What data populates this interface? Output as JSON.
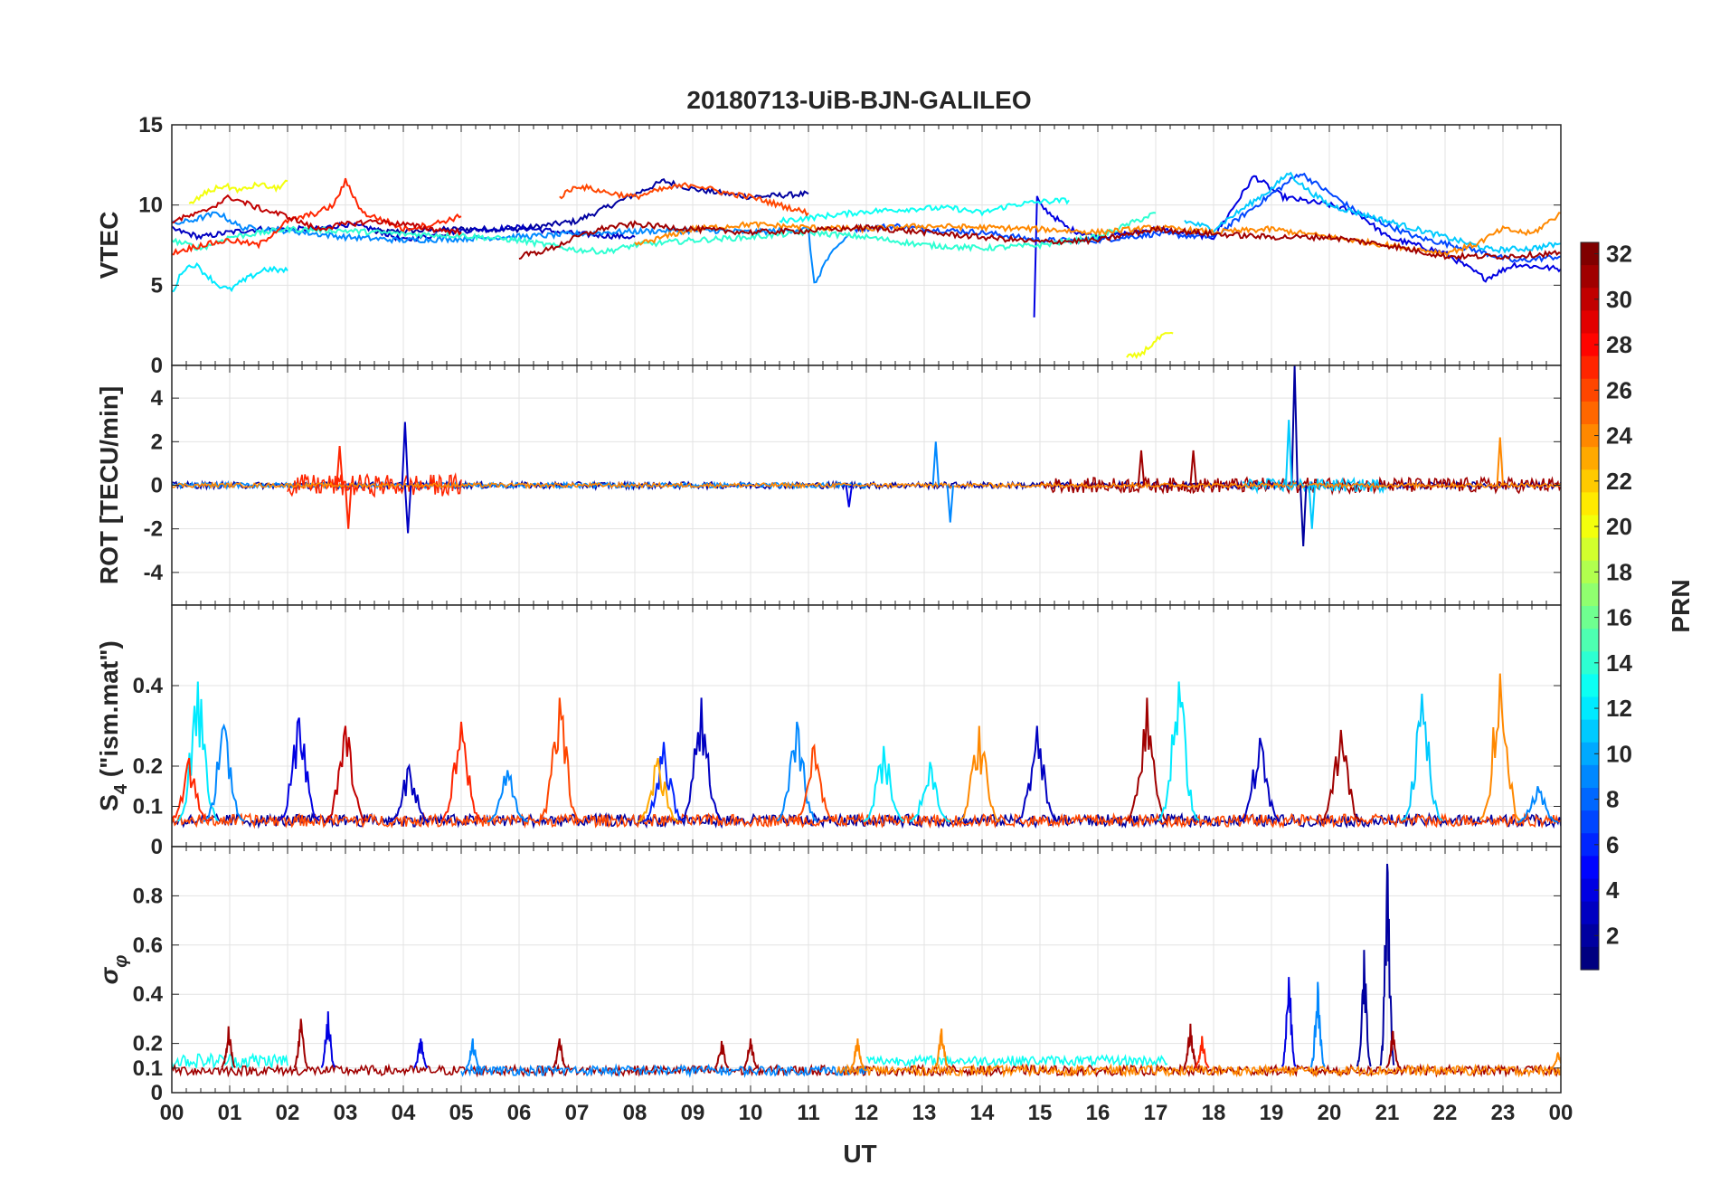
{
  "chart_data": {
    "type": "line",
    "title": "20180713-UiB-BJN-GALILEO",
    "xlabel": "UT",
    "x_ticks": [
      "00",
      "01",
      "02",
      "03",
      "04",
      "05",
      "06",
      "07",
      "08",
      "09",
      "10",
      "11",
      "12",
      "13",
      "14",
      "15",
      "16",
      "17",
      "18",
      "19",
      "20",
      "21",
      "22",
      "23",
      "00"
    ],
    "xlim": [
      0,
      24
    ],
    "colorbar": {
      "label": "PRN",
      "range": [
        1,
        32
      ],
      "ticks": [
        "2",
        "4",
        "6",
        "8",
        "10",
        "12",
        "14",
        "16",
        "18",
        "20",
        "22",
        "24",
        "26",
        "28",
        "30",
        "32"
      ],
      "colormap": "jet"
    },
    "panels": [
      {
        "name": "vtec",
        "ylabel": "VTEC",
        "ylim": [
          0,
          15
        ],
        "yticks": [
          "0",
          "5",
          "10",
          "15"
        ],
        "series": [
          {
            "prn": 2,
            "x": [
              3.5,
              5,
              6,
              7,
              8.5,
              9,
              10,
              11
            ],
            "y": [
              8.3,
              8.5,
              8.5,
              9.0,
              11.5,
              11.0,
              10.5,
              10.7
            ]
          },
          {
            "prn": 3,
            "x": [
              0,
              0.5,
              1,
              1.5,
              2.5,
              3,
              3.5,
              4,
              5,
              6,
              7,
              8
            ],
            "y": [
              8.5,
              8.0,
              8.3,
              8.5,
              8.5,
              8.8,
              8.5,
              7.8,
              8.4,
              8.6,
              8.2,
              8.0
            ]
          },
          {
            "prn": 4,
            "x": [
              14.9,
              14.95,
              15,
              15.5,
              16,
              17,
              18,
              18.7,
              19.2,
              19.5,
              20,
              20.5,
              21,
              22,
              22.7,
              23.2,
              24
            ],
            "y": [
              3.0,
              10.5,
              10.0,
              8.5,
              8.0,
              8.5,
              8.0,
              11.8,
              10.5,
              10.3,
              10.0,
              9.5,
              8.0,
              7.0,
              5.4,
              6.3,
              6.0
            ]
          },
          {
            "prn": 7,
            "x": [
              11.8,
              12.5,
              13,
              14,
              15,
              16,
              17,
              18,
              19.5,
              20.5,
              21.5,
              22.5,
              23.2,
              24
            ],
            "y": [
              8.5,
              8.7,
              8.5,
              8.3,
              7.8,
              7.8,
              8.2,
              8.0,
              12.0,
              9.5,
              8.0,
              7.2,
              6.5,
              6.8
            ]
          },
          {
            "prn": 9,
            "x": [
              0,
              0.3,
              0.8,
              1.2,
              2,
              3,
              4,
              5,
              6.5,
              7.5,
              8.5,
              9.5,
              10,
              11,
              11.1,
              11.3,
              11.7
            ],
            "y": [
              8.8,
              9.0,
              9.5,
              8.6,
              8.4,
              8.0,
              7.8,
              7.9,
              8.1,
              8.3,
              8.4,
              8.4,
              8.3,
              8.5,
              5.0,
              6.5,
              8.2
            ]
          },
          {
            "prn": 11,
            "x": [
              17.5,
              18,
              19,
              19.3,
              19.6,
              20,
              21,
              22,
              22.8,
              23.5,
              24
            ],
            "y": [
              9.0,
              8.5,
              11.0,
              12.0,
              11.0,
              10.0,
              9.0,
              8.0,
              7.2,
              7.3,
              7.6
            ]
          },
          {
            "prn": 12,
            "x": [
              0,
              0.2,
              0.4,
              0.8,
              1.0,
              1.2,
              1.6,
              2.0
            ],
            "y": [
              4.5,
              6.0,
              6.3,
              5.0,
              4.7,
              5.2,
              6.0,
              5.9
            ]
          },
          {
            "prn": 13,
            "x": [
              10.5,
              11,
              12,
              13,
              13.5,
              14,
              14.5,
              15,
              15.5
            ],
            "y": [
              9.0,
              9.2,
              9.6,
              9.8,
              9.8,
              9.5,
              10.0,
              10.2,
              10.3
            ]
          },
          {
            "prn": 14,
            "x": [
              0,
              0.5,
              1,
              2,
              3,
              4,
              5,
              6,
              7,
              7.5,
              8,
              9,
              10,
              11,
              12,
              13,
              14,
              15,
              16,
              17
            ],
            "y": [
              7.8,
              7.3,
              8.0,
              8.5,
              8.4,
              8.2,
              8.1,
              7.8,
              7.2,
              7.1,
              7.5,
              7.8,
              8.0,
              8.3,
              8.0,
              7.5,
              7.3,
              7.5,
              8.0,
              9.5
            ]
          },
          {
            "prn": 20,
            "x": [
              0.3,
              0.6,
              0.9,
              1.2,
              1.5,
              1.8,
              2.0
            ],
            "y": [
              10.0,
              10.8,
              11.2,
              10.9,
              11.3,
              11.0,
              11.5
            ]
          },
          {
            "prn": 20,
            "x": [
              16.5,
              16.7,
              16.9,
              17.1,
              17.3
            ],
            "y": [
              0.5,
              0.6,
              1.2,
              1.8,
              2.0
            ]
          },
          {
            "prn": 24,
            "x": [
              8,
              8.5,
              9,
              10,
              11,
              12,
              13,
              14,
              15,
              16,
              17,
              18,
              19,
              20,
              21,
              22,
              22.5,
              23,
              23.5,
              24
            ],
            "y": [
              7.5,
              8.0,
              8.5,
              8.8,
              8.6,
              8.5,
              8.7,
              8.6,
              8.5,
              8.3,
              8.6,
              8.3,
              8.5,
              8.0,
              7.5,
              7.0,
              7.5,
              8.5,
              8.2,
              9.5
            ]
          },
          {
            "prn": 26,
            "x": [
              6.7,
              7,
              7.5,
              8,
              8.5,
              9,
              9.5,
              10,
              10.5,
              11
            ],
            "y": [
              10.5,
              11.2,
              10.8,
              10.5,
              11.0,
              11.3,
              10.8,
              10.5,
              10.0,
              9.5
            ]
          },
          {
            "prn": 27,
            "x": [
              0,
              0.5,
              1,
              1.5,
              2,
              2.5,
              2.8,
              3,
              3.3,
              3.7,
              4,
              4.5,
              5
            ],
            "y": [
              7.0,
              7.5,
              7.8,
              7.5,
              9.0,
              9.5,
              10.0,
              11.5,
              9.5,
              9.0,
              8.5,
              8.8,
              9.3
            ]
          },
          {
            "prn": 30,
            "x": [
              0,
              0.5,
              1,
              1.5,
              2,
              2.5,
              3,
              3.5,
              4,
              4.5,
              5
            ],
            "y": [
              9.0,
              9.5,
              10.5,
              9.8,
              9.3,
              8.5,
              8.8,
              9.0,
              8.8,
              8.5,
              8.3
            ]
          },
          {
            "prn": 31,
            "x": [
              6,
              6.5,
              7,
              7.5,
              8,
              9,
              10,
              11,
              12,
              13,
              14,
              15,
              16,
              17,
              18,
              19,
              20,
              21,
              22,
              23,
              24
            ],
            "y": [
              6.8,
              7.2,
              8.0,
              8.6,
              8.8,
              8.5,
              8.3,
              8.4,
              8.6,
              8.3,
              8.0,
              7.7,
              7.8,
              8.5,
              8.2,
              8.0,
              8.0,
              7.5,
              6.8,
              6.8,
              7.0
            ]
          }
        ]
      },
      {
        "name": "rot",
        "ylabel": "ROT [TECU/min]",
        "ylim": [
          -5.5,
          5.5
        ],
        "yticks": [
          "-4",
          "-2",
          "0",
          "2",
          "4"
        ],
        "baseline_noise": [
          {
            "prn": 2,
            "from": 0,
            "to": 24,
            "amp": 0.15
          },
          {
            "prn": 9,
            "from": 0,
            "to": 12,
            "amp": 0.12
          },
          {
            "prn": 27,
            "from": 2,
            "to": 5,
            "amp": 0.5
          },
          {
            "prn": 31,
            "from": 15,
            "to": 24,
            "amp": 0.35
          },
          {
            "prn": 11,
            "from": 18.5,
            "to": 21,
            "amp": 0.3
          },
          {
            "prn": 24,
            "from": 0,
            "to": 24,
            "amp": 0.1
          }
        ],
        "spikes": [
          {
            "prn": 3,
            "x": 4.03,
            "y": 2.9
          },
          {
            "prn": 3,
            "x": 4.08,
            "y": -2.2
          },
          {
            "prn": 27,
            "x": 2.9,
            "y": 1.8
          },
          {
            "prn": 27,
            "x": 3.05,
            "y": -2.0
          },
          {
            "prn": 9,
            "x": 13.2,
            "y": 2.0
          },
          {
            "prn": 9,
            "x": 13.45,
            "y": -1.7
          },
          {
            "prn": 2,
            "x": 19.4,
            "y": 5.5
          },
          {
            "prn": 2,
            "x": 19.55,
            "y": -2.8
          },
          {
            "prn": 11,
            "x": 19.3,
            "y": 3.0
          },
          {
            "prn": 11,
            "x": 19.7,
            "y": -2.0
          },
          {
            "prn": 31,
            "x": 17.65,
            "y": 1.6
          },
          {
            "prn": 31,
            "x": 16.75,
            "y": 1.6
          },
          {
            "prn": 24,
            "x": 22.95,
            "y": 2.2
          },
          {
            "prn": 4,
            "x": 11.7,
            "y": -1.0
          }
        ]
      },
      {
        "name": "s4",
        "ylabel": "S4 (\"ism.mat\")",
        "ylabel_sub": "4",
        "ylabel_rest": " (\"ism.mat\")",
        "ylabel_main": "S",
        "ylim": [
          0,
          0.6
        ],
        "yticks": [
          "0",
          "0.1",
          "0.2",
          "0.4"
        ],
        "baseline_noise": [
          {
            "prn": 2,
            "from": 0,
            "to": 24,
            "amp": 0.015
          },
          {
            "prn": 26,
            "from": 0,
            "to": 24,
            "amp": 0.015
          }
        ],
        "peaks": [
          {
            "prn": 12,
            "x": 0.45,
            "y": 0.41
          },
          {
            "prn": 9,
            "x": 0.9,
            "y": 0.3
          },
          {
            "prn": 27,
            "x": 0.3,
            "y": 0.22
          },
          {
            "prn": 4,
            "x": 2.2,
            "y": 0.32
          },
          {
            "prn": 30,
            "x": 3.0,
            "y": 0.3
          },
          {
            "prn": 3,
            "x": 4.1,
            "y": 0.2
          },
          {
            "prn": 27,
            "x": 5.0,
            "y": 0.31
          },
          {
            "prn": 9,
            "x": 5.8,
            "y": 0.19
          },
          {
            "prn": 26,
            "x": 6.7,
            "y": 0.37
          },
          {
            "prn": 6,
            "x": 8.5,
            "y": 0.26
          },
          {
            "prn": 3,
            "x": 9.15,
            "y": 0.37
          },
          {
            "prn": 23,
            "x": 8.4,
            "y": 0.22
          },
          {
            "prn": 9,
            "x": 10.8,
            "y": 0.31
          },
          {
            "prn": 26,
            "x": 11.1,
            "y": 0.25
          },
          {
            "prn": 12,
            "x": 12.3,
            "y": 0.25
          },
          {
            "prn": 12,
            "x": 13.1,
            "y": 0.21
          },
          {
            "prn": 24,
            "x": 13.95,
            "y": 0.3
          },
          {
            "prn": 3,
            "x": 14.95,
            "y": 0.3
          },
          {
            "prn": 31,
            "x": 16.85,
            "y": 0.37
          },
          {
            "prn": 12,
            "x": 17.4,
            "y": 0.41
          },
          {
            "prn": 3,
            "x": 18.8,
            "y": 0.27
          },
          {
            "prn": 31,
            "x": 20.2,
            "y": 0.29
          },
          {
            "prn": 11,
            "x": 21.6,
            "y": 0.38
          },
          {
            "prn": 24,
            "x": 22.95,
            "y": 0.43
          },
          {
            "prn": 9,
            "x": 23.6,
            "y": 0.15
          }
        ]
      },
      {
        "name": "sigma_phi",
        "ylabel": "σφ",
        "ylabel_main": "σ",
        "ylabel_sub": "φ",
        "ylim": [
          0,
          1.0
        ],
        "yticks": [
          "0",
          "0.1",
          "0.2",
          "0.4",
          "0.6",
          "0.8"
        ],
        "baseline_noise": [
          {
            "prn": 13,
            "from": 0,
            "to": 2,
            "amp": 0.03,
            "base": 0.13
          },
          {
            "prn": 13,
            "from": 12,
            "to": 17.2,
            "amp": 0.02,
            "base": 0.13
          },
          {
            "prn": 31,
            "from": 0,
            "to": 24,
            "amp": 0.02,
            "base": 0.09
          },
          {
            "prn": 9,
            "from": 5,
            "to": 12,
            "amp": 0.02,
            "base": 0.09
          },
          {
            "prn": 24,
            "from": 11.5,
            "to": 24,
            "amp": 0.02,
            "base": 0.09
          }
        ],
        "peaks": [
          {
            "prn": 31,
            "x": 0.98,
            "y": 0.27
          },
          {
            "prn": 31,
            "x": 2.23,
            "y": 0.3
          },
          {
            "prn": 4,
            "x": 2.7,
            "y": 0.33
          },
          {
            "prn": 9,
            "x": 5.2,
            "y": 0.22
          },
          {
            "prn": 4,
            "x": 4.3,
            "y": 0.22
          },
          {
            "prn": 31,
            "x": 6.7,
            "y": 0.22
          },
          {
            "prn": 31,
            "x": 9.5,
            "y": 0.21
          },
          {
            "prn": 31,
            "x": 10.0,
            "y": 0.22
          },
          {
            "prn": 24,
            "x": 11.85,
            "y": 0.22
          },
          {
            "prn": 24,
            "x": 13.3,
            "y": 0.26
          },
          {
            "prn": 31,
            "x": 17.6,
            "y": 0.28
          },
          {
            "prn": 27,
            "x": 17.8,
            "y": 0.23
          },
          {
            "prn": 4,
            "x": 19.3,
            "y": 0.47
          },
          {
            "prn": 9,
            "x": 19.8,
            "y": 0.45
          },
          {
            "prn": 2,
            "x": 20.6,
            "y": 0.58
          },
          {
            "prn": 2,
            "x": 21.0,
            "y": 0.93
          },
          {
            "prn": 31,
            "x": 21.1,
            "y": 0.25
          },
          {
            "prn": 24,
            "x": 23.95,
            "y": 0.16
          }
        ]
      }
    ]
  }
}
